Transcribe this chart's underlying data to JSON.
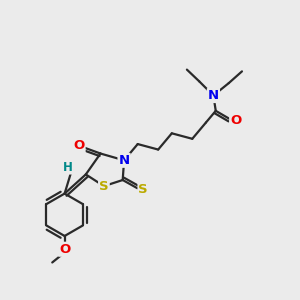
{
  "bg_color": "#ebebeb",
  "bond_color": "#2a2a2a",
  "bond_width": 1.6,
  "atom_colors": {
    "C": "#2a2a2a",
    "N": "#0000ee",
    "O": "#ee0000",
    "S": "#bbaa00",
    "H": "#008888"
  },
  "font_size": 8.5,
  "fig_size": [
    3.0,
    3.0
  ],
  "dpi": 100,
  "xlim": [
    0,
    10
  ],
  "ylim": [
    0,
    10
  ]
}
